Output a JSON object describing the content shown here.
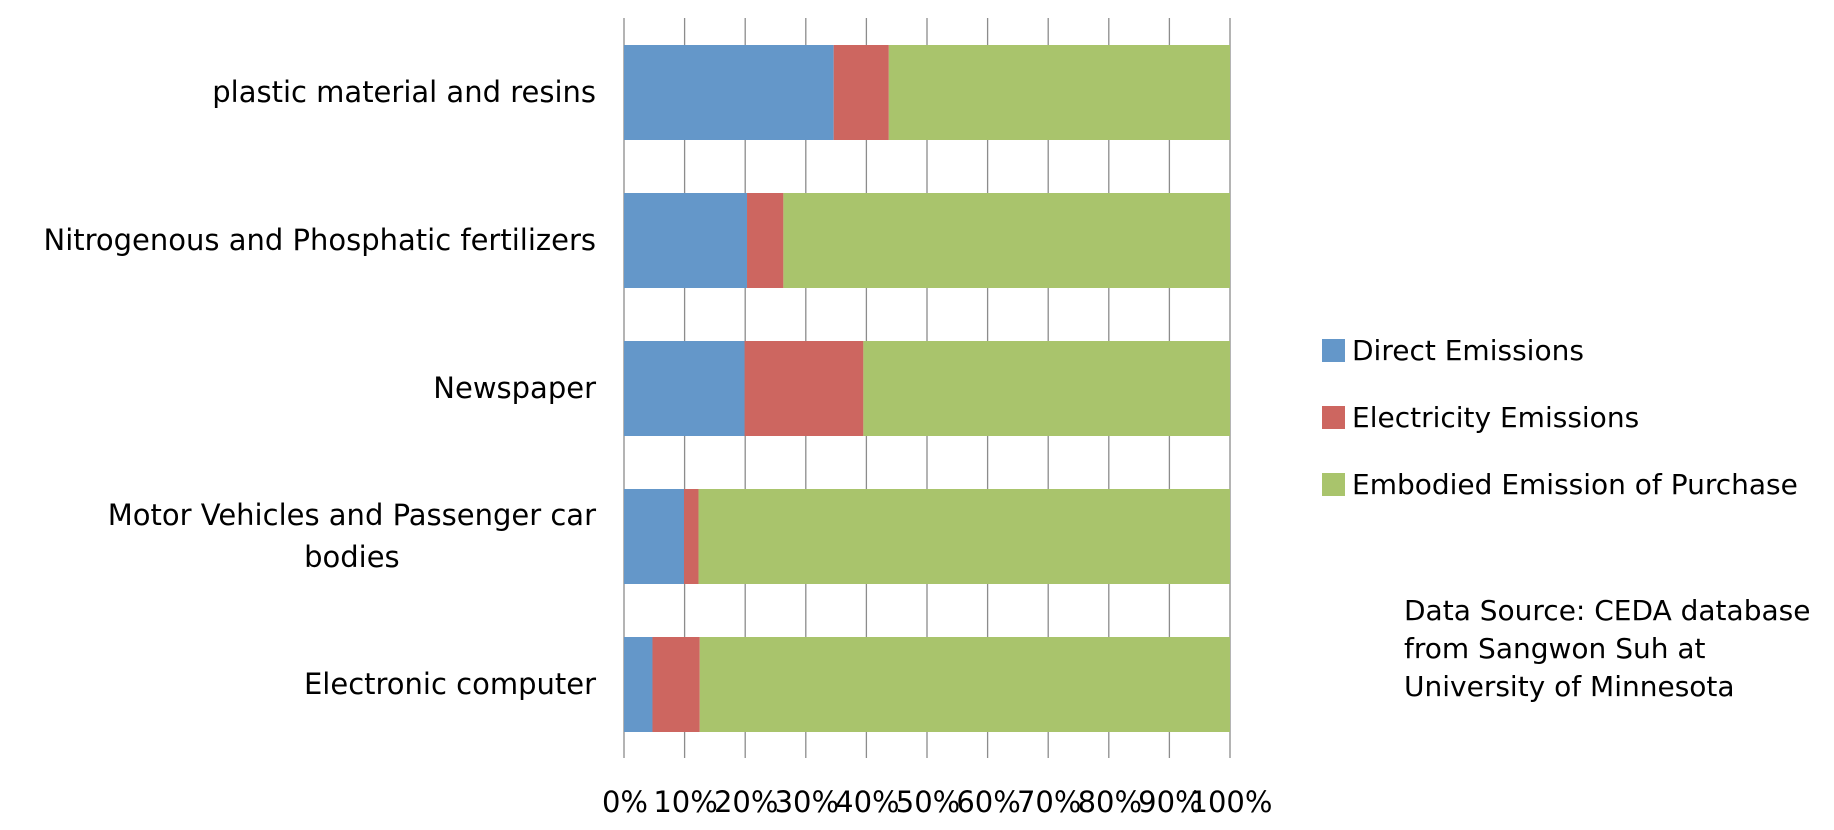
{
  "chart_data": {
    "type": "bar",
    "orientation": "horizontal",
    "stacked": "percent",
    "categories": [
      "plastic material and resins",
      "Nitrogenous and Phosphatic fertilizers",
      "Newspaper",
      "Motor Vehicles and Passenger car bodies",
      "Electronic computer"
    ],
    "series": [
      {
        "name": "Direct Emissions",
        "color": "#6497c9",
        "values": [
          34.6,
          20.3,
          19.9,
          9.9,
          4.7
        ]
      },
      {
        "name": "Electricity Emissions",
        "color": "#cd6660",
        "values": [
          9.1,
          6.0,
          19.6,
          2.4,
          7.8
        ]
      },
      {
        "name": "Embodied Emission of Purchase",
        "color": "#a9c46c",
        "values": [
          56.3,
          73.7,
          60.5,
          87.7,
          87.5
        ]
      }
    ],
    "x_ticks": [
      "0%",
      "10%",
      "20%",
      "30%",
      "40%",
      "50%",
      "60%",
      "70%",
      "80%",
      "90%",
      "100%"
    ],
    "xlim": [
      0,
      100
    ],
    "grid": true,
    "legend_position": "right",
    "title": "",
    "xlabel": "",
    "ylabel": ""
  },
  "annotation": {
    "lines": [
      "Data Source: CEDA database",
      "from Sangwon Suh at",
      "University of Minnesota"
    ]
  }
}
